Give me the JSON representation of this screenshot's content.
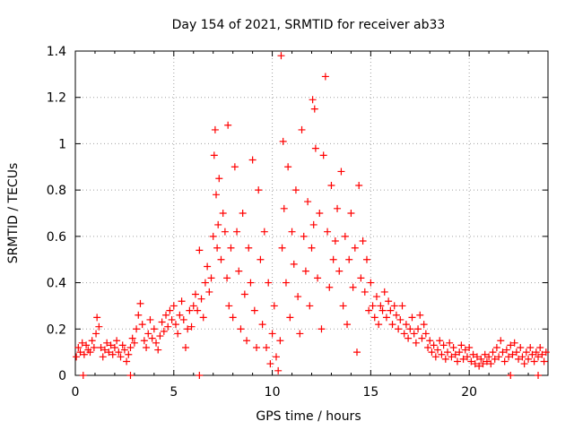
{
  "chart_data": {
    "type": "scatter",
    "title": "Day 154 of 2021, SRMTID for receiver ab33",
    "xlabel": "GPS time / hours",
    "ylabel": "SRMTID / TECUs",
    "xlim": [
      0,
      24
    ],
    "ylim": [
      0,
      1.4
    ],
    "x_ticks": [
      0,
      5,
      10,
      15,
      20
    ],
    "x_tick_labels": [
      "0",
      "5",
      "10",
      "15",
      "20"
    ],
    "y_ticks": [
      0,
      0.2,
      0.4,
      0.6,
      0.8,
      1,
      1.2,
      1.4
    ],
    "y_tick_labels": [
      "0",
      "0.2",
      "0.4",
      "0.6",
      "0.8",
      "1",
      "1.2",
      "1.4"
    ],
    "grid": true,
    "marker": "+",
    "color": "#ff0000",
    "series": [
      {
        "name": "SRMTID",
        "points": [
          [
            0.05,
            0.08
          ],
          [
            0.15,
            0.12
          ],
          [
            0.25,
            0.1
          ],
          [
            0.35,
            0.14
          ],
          [
            0.45,
            0.09
          ],
          [
            0.55,
            0.13
          ],
          [
            0.65,
            0.11
          ],
          [
            0.75,
            0.1
          ],
          [
            0.85,
            0.15
          ],
          [
            0.95,
            0.12
          ],
          [
            1.05,
            0.18
          ],
          [
            1.1,
            0.25
          ],
          [
            1.2,
            0.21
          ],
          [
            1.3,
            0.12
          ],
          [
            1.4,
            0.08
          ],
          [
            1.5,
            0.11
          ],
          [
            1.6,
            0.14
          ],
          [
            1.7,
            0.1
          ],
          [
            1.8,
            0.13
          ],
          [
            1.9,
            0.09
          ],
          [
            2.0,
            0.12
          ],
          [
            2.1,
            0.15
          ],
          [
            2.2,
            0.1
          ],
          [
            2.3,
            0.08
          ],
          [
            2.4,
            0.13
          ],
          [
            2.5,
            0.11
          ],
          [
            2.6,
            0.06
          ],
          [
            2.7,
            0.09
          ],
          [
            2.8,
            0.12
          ],
          [
            2.9,
            0.16
          ],
          [
            3.0,
            0.14
          ],
          [
            3.1,
            0.2
          ],
          [
            3.2,
            0.26
          ],
          [
            3.3,
            0.31
          ],
          [
            3.4,
            0.22
          ],
          [
            3.5,
            0.15
          ],
          [
            3.6,
            0.12
          ],
          [
            3.7,
            0.18
          ],
          [
            3.8,
            0.24
          ],
          [
            3.9,
            0.16
          ],
          [
            4.0,
            0.2
          ],
          [
            4.1,
            0.14
          ],
          [
            4.2,
            0.11
          ],
          [
            4.3,
            0.17
          ],
          [
            4.4,
            0.23
          ],
          [
            4.5,
            0.19
          ],
          [
            4.6,
            0.26
          ],
          [
            4.7,
            0.21
          ],
          [
            4.8,
            0.28
          ],
          [
            4.9,
            0.24
          ],
          [
            5.0,
            0.3
          ],
          [
            5.1,
            0.22
          ],
          [
            5.2,
            0.18
          ],
          [
            5.3,
            0.26
          ],
          [
            5.4,
            0.32
          ],
          [
            5.5,
            0.24
          ],
          [
            5.6,
            0.12
          ],
          [
            5.7,
            0.2
          ],
          [
            5.8,
            0.28
          ],
          [
            5.9,
            0.21
          ],
          [
            6.0,
            0.3
          ],
          [
            6.1,
            0.35
          ],
          [
            6.2,
            0.28
          ],
          [
            6.3,
            0.54
          ],
          [
            6.4,
            0.33
          ],
          [
            6.5,
            0.25
          ],
          [
            6.6,
            0.4
          ],
          [
            6.7,
            0.47
          ],
          [
            6.8,
            0.36
          ],
          [
            6.9,
            0.42
          ],
          [
            7.0,
            0.6
          ],
          [
            7.05,
            0.95
          ],
          [
            7.1,
            1.06
          ],
          [
            7.15,
            0.78
          ],
          [
            7.2,
            0.55
          ],
          [
            7.25,
            0.65
          ],
          [
            7.3,
            0.85
          ],
          [
            7.4,
            0.5
          ],
          [
            7.5,
            0.7
          ],
          [
            7.6,
            0.62
          ],
          [
            7.7,
            0.42
          ],
          [
            7.75,
            1.08
          ],
          [
            7.8,
            0.3
          ],
          [
            7.9,
            0.55
          ],
          [
            8.0,
            0.25
          ],
          [
            8.1,
            0.9
          ],
          [
            8.2,
            0.62
          ],
          [
            8.3,
            0.45
          ],
          [
            8.4,
            0.2
          ],
          [
            8.5,
            0.7
          ],
          [
            8.6,
            0.35
          ],
          [
            8.7,
            0.15
          ],
          [
            8.8,
            0.55
          ],
          [
            8.9,
            0.4
          ],
          [
            9.0,
            0.93
          ],
          [
            9.1,
            0.28
          ],
          [
            9.2,
            0.12
          ],
          [
            9.3,
            0.8
          ],
          [
            9.4,
            0.5
          ],
          [
            9.5,
            0.22
          ],
          [
            9.6,
            0.62
          ],
          [
            9.7,
            0.12
          ],
          [
            9.8,
            0.4
          ],
          [
            9.9,
            0.05
          ],
          [
            10.0,
            0.18
          ],
          [
            10.1,
            0.3
          ],
          [
            10.2,
            0.08
          ],
          [
            10.3,
            0.02
          ],
          [
            10.4,
            0.15
          ],
          [
            10.45,
            1.38
          ],
          [
            10.5,
            0.55
          ],
          [
            10.55,
            1.01
          ],
          [
            10.6,
            0.72
          ],
          [
            10.7,
            0.4
          ],
          [
            10.8,
            0.9
          ],
          [
            10.9,
            0.25
          ],
          [
            11.0,
            0.62
          ],
          [
            11.1,
            0.48
          ],
          [
            11.2,
            0.8
          ],
          [
            11.3,
            0.34
          ],
          [
            11.4,
            0.18
          ],
          [
            11.5,
            1.06
          ],
          [
            11.6,
            0.6
          ],
          [
            11.7,
            0.45
          ],
          [
            11.8,
            0.75
          ],
          [
            11.9,
            0.3
          ],
          [
            12.0,
            0.55
          ],
          [
            12.05,
            1.19
          ],
          [
            12.1,
            0.65
          ],
          [
            12.15,
            1.15
          ],
          [
            12.2,
            0.98
          ],
          [
            12.3,
            0.42
          ],
          [
            12.4,
            0.7
          ],
          [
            12.5,
            0.2
          ],
          [
            12.6,
            0.95
          ],
          [
            12.7,
            1.29
          ],
          [
            12.8,
            0.62
          ],
          [
            12.9,
            0.38
          ],
          [
            13.0,
            0.82
          ],
          [
            13.1,
            0.5
          ],
          [
            13.2,
            0.58
          ],
          [
            13.3,
            0.72
          ],
          [
            13.4,
            0.45
          ],
          [
            13.5,
            0.88
          ],
          [
            13.6,
            0.3
          ],
          [
            13.7,
            0.6
          ],
          [
            13.8,
            0.22
          ],
          [
            13.9,
            0.5
          ],
          [
            14.0,
            0.7
          ],
          [
            14.1,
            0.38
          ],
          [
            14.2,
            0.55
          ],
          [
            14.3,
            0.1
          ],
          [
            14.4,
            0.82
          ],
          [
            14.5,
            0.42
          ],
          [
            14.6,
            0.58
          ],
          [
            14.7,
            0.36
          ],
          [
            14.8,
            0.5
          ],
          [
            14.9,
            0.28
          ],
          [
            15.0,
            0.4
          ],
          [
            15.1,
            0.3
          ],
          [
            15.2,
            0.25
          ],
          [
            15.3,
            0.34
          ],
          [
            15.4,
            0.22
          ],
          [
            15.5,
            0.3
          ],
          [
            15.6,
            0.28
          ],
          [
            15.7,
            0.36
          ],
          [
            15.8,
            0.25
          ],
          [
            15.9,
            0.32
          ],
          [
            16.0,
            0.28
          ],
          [
            16.1,
            0.22
          ],
          [
            16.2,
            0.3
          ],
          [
            16.3,
            0.26
          ],
          [
            16.4,
            0.2
          ],
          [
            16.5,
            0.24
          ],
          [
            16.6,
            0.3
          ],
          [
            16.7,
            0.18
          ],
          [
            16.8,
            0.22
          ],
          [
            16.9,
            0.16
          ],
          [
            17.0,
            0.2
          ],
          [
            17.1,
            0.25
          ],
          [
            17.2,
            0.18
          ],
          [
            17.3,
            0.14
          ],
          [
            17.4,
            0.2
          ],
          [
            17.5,
            0.26
          ],
          [
            17.6,
            0.16
          ],
          [
            17.7,
            0.22
          ],
          [
            17.8,
            0.18
          ],
          [
            17.9,
            0.12
          ],
          [
            18.0,
            0.15
          ],
          [
            18.1,
            0.1
          ],
          [
            18.2,
            0.13
          ],
          [
            18.3,
            0.08
          ],
          [
            18.4,
            0.11
          ],
          [
            18.5,
            0.15
          ],
          [
            18.6,
            0.09
          ],
          [
            18.7,
            0.13
          ],
          [
            18.8,
            0.07
          ],
          [
            18.9,
            0.1
          ],
          [
            19.0,
            0.14
          ],
          [
            19.1,
            0.08
          ],
          [
            19.2,
            0.12
          ],
          [
            19.3,
            0.09
          ],
          [
            19.4,
            0.06
          ],
          [
            19.5,
            0.1
          ],
          [
            19.6,
            0.13
          ],
          [
            19.7,
            0.07
          ],
          [
            19.8,
            0.11
          ],
          [
            19.9,
            0.08
          ],
          [
            20.0,
            0.12
          ],
          [
            20.1,
            0.06
          ],
          [
            20.2,
            0.09
          ],
          [
            20.3,
            0.05
          ],
          [
            20.4,
            0.08
          ],
          [
            20.5,
            0.04
          ],
          [
            20.6,
            0.07
          ],
          [
            20.7,
            0.05
          ],
          [
            20.8,
            0.09
          ],
          [
            20.9,
            0.06
          ],
          [
            21.0,
            0.08
          ],
          [
            21.1,
            0.05
          ],
          [
            21.2,
            0.1
          ],
          [
            21.3,
            0.07
          ],
          [
            21.4,
            0.12
          ],
          [
            21.5,
            0.08
          ],
          [
            21.6,
            0.15
          ],
          [
            21.7,
            0.1
          ],
          [
            21.8,
            0.06
          ],
          [
            21.9,
            0.11
          ],
          [
            22.0,
            0.08
          ],
          [
            22.1,
            0.13
          ],
          [
            22.2,
            0.09
          ],
          [
            22.3,
            0.14
          ],
          [
            22.4,
            0.1
          ],
          [
            22.5,
            0.07
          ],
          [
            22.6,
            0.12
          ],
          [
            22.7,
            0.08
          ],
          [
            22.8,
            0.05
          ],
          [
            22.9,
            0.1
          ],
          [
            23.0,
            0.07
          ],
          [
            23.1,
            0.12
          ],
          [
            23.2,
            0.09
          ],
          [
            23.3,
            0.06
          ],
          [
            23.4,
            0.1
          ],
          [
            23.5,
            0.08
          ],
          [
            23.6,
            0.12
          ],
          [
            23.7,
            0.09
          ],
          [
            23.8,
            0.06
          ],
          [
            23.9,
            0.1
          ],
          [
            0.4,
            0.0
          ],
          [
            2.8,
            0.0
          ],
          [
            6.3,
            0.0
          ],
          [
            22.1,
            0.0
          ],
          [
            23.5,
            0.0
          ]
        ]
      }
    ]
  }
}
